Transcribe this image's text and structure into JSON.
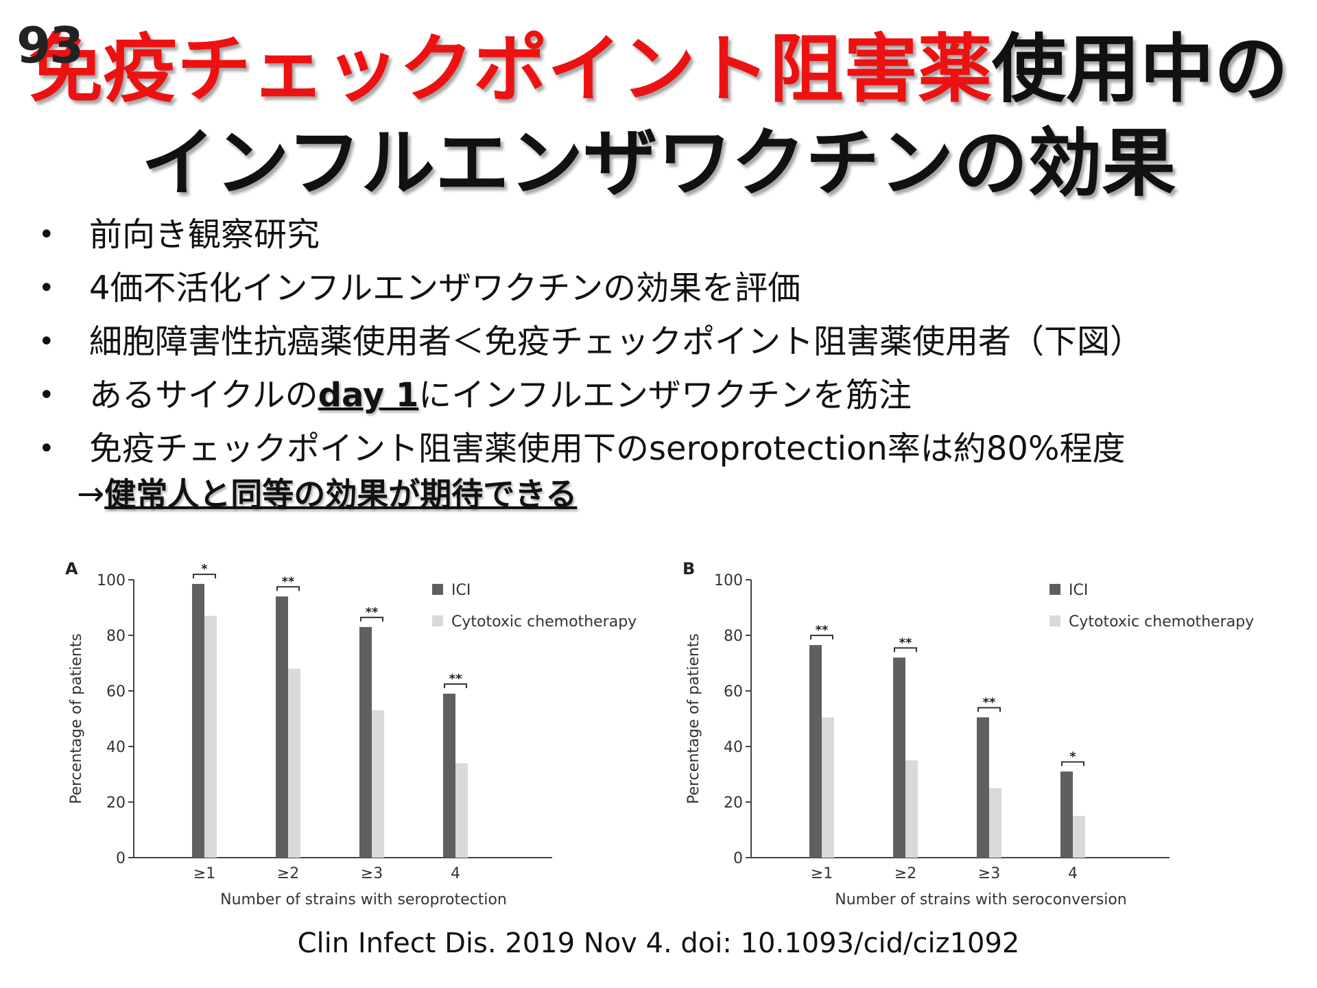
{
  "slide_number": "93",
  "title": {
    "line1_red": "免疫チェックポイント阻害薬",
    "line1_black": "使用中の",
    "line2": "インフルエンザワクチンの効果"
  },
  "bullet_glyph": "•",
  "bullets": [
    {
      "text": "前向き観察研究"
    },
    {
      "text": "4価不活化インフルエンザワクチンの効果を評価"
    },
    {
      "text": "細胞障害性抗癌薬使用者＜免疫チェックポイント阻害薬使用者（下図）"
    },
    {
      "pre": "あるサイクルの",
      "bold": "day 1",
      "post": "にインフルエンザワクチンを筋注"
    },
    {
      "text": "免疫チェックポイント阻害薬使用下のseroprotection率は約80%程度"
    }
  ],
  "conclusion": {
    "arrow": "→",
    "text": "健常人と同等の効果が期待できる"
  },
  "colors": {
    "ici": "#5f5f5f",
    "chemo": "#d9d9d9",
    "title_red": "#ee1111"
  },
  "chart_data": [
    {
      "type": "bar",
      "panel_label": "A",
      "categories": [
        "≥1",
        "≥2",
        "≥3",
        "4"
      ],
      "series": [
        {
          "name": "ICI",
          "values": [
            98.5,
            94,
            83,
            59
          ]
        },
        {
          "name": "Cytotoxic chemotherapy",
          "values": [
            87,
            68,
            53,
            34
          ]
        }
      ],
      "significance": [
        "*",
        "**",
        "**",
        "**"
      ],
      "xlabel": "Number of strains with seroprotection",
      "ylabel": "Percentage of patients",
      "ylim": [
        0,
        100
      ],
      "yticks": [
        0,
        20,
        40,
        60,
        80,
        100
      ],
      "legend_position": "top-right",
      "grid": false
    },
    {
      "type": "bar",
      "panel_label": "B",
      "categories": [
        "≥1",
        "≥2",
        "≥3",
        "4"
      ],
      "series": [
        {
          "name": "ICI",
          "values": [
            76.5,
            72,
            50.5,
            31
          ]
        },
        {
          "name": "Cytotoxic chemotherapy",
          "values": [
            50.5,
            35,
            25,
            15
          ]
        }
      ],
      "significance": [
        "**",
        "**",
        "**",
        "*"
      ],
      "xlabel": "Number of strains with seroconversion",
      "ylabel": "Percentage of patients",
      "ylim": [
        0,
        100
      ],
      "yticks": [
        0,
        20,
        40,
        60,
        80,
        100
      ],
      "legend_position": "top-right",
      "grid": false
    }
  ],
  "citation": "Clin Infect Dis. 2019 Nov 4. doi: 10.1093/cid/ciz1092"
}
